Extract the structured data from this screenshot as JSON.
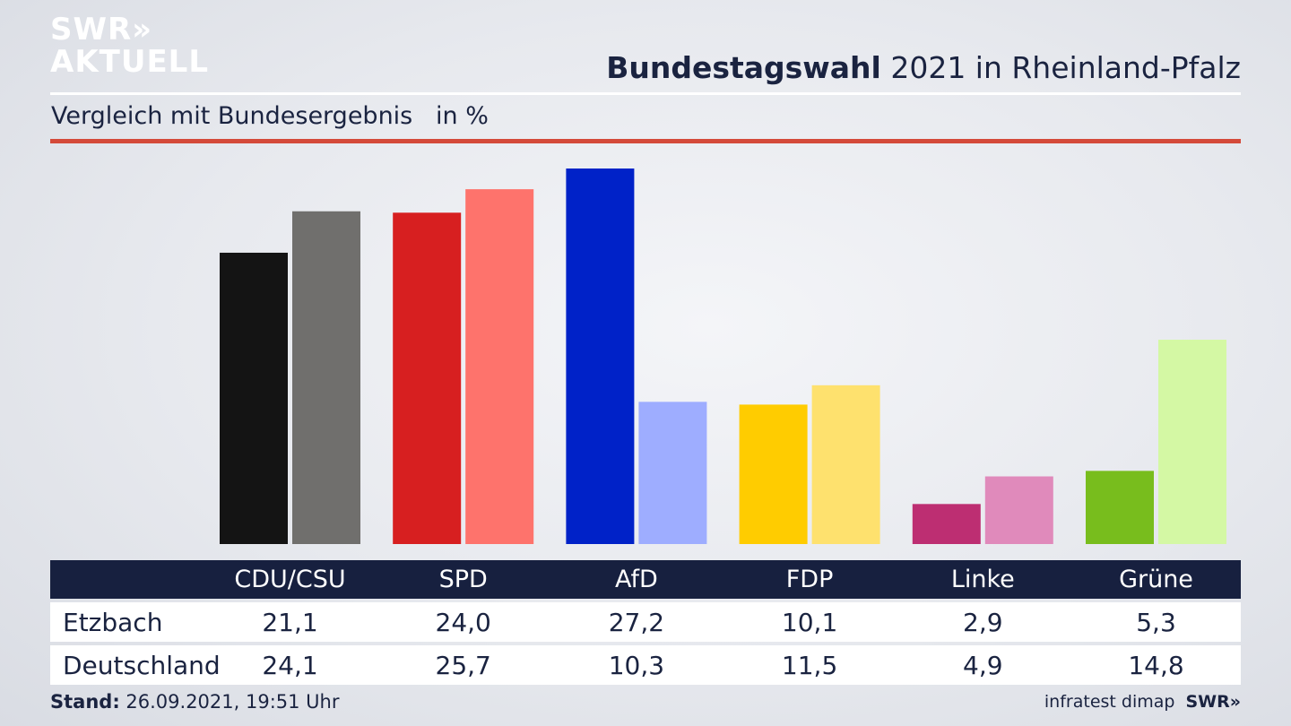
{
  "logo": {
    "line1": "SWR»",
    "line2": "AKTUELL"
  },
  "header": {
    "title_bold": "Bundestagswahl",
    "title_rest": " 2021 in Rheinland-Pfalz"
  },
  "subtitle": "Vergleich mit Bundesergebnis   in %",
  "footer": {
    "stand_label": "Stand:",
    "stand_value": " 26.09.2021, 19:51 Uhr",
    "source": "infratest dimap",
    "brand": "SWR»"
  },
  "chart_data": {
    "type": "bar",
    "categories": [
      "CDU/CSU",
      "SPD",
      "AfD",
      "FDP",
      "Linke",
      "Grüne"
    ],
    "series": [
      {
        "name": "Etzbach",
        "values": [
          21.1,
          24.0,
          27.2,
          10.1,
          2.9,
          5.3
        ],
        "colors": [
          "#141414",
          "#d71f20",
          "#0022c8",
          "#ffcc00",
          "#bd2e72",
          "#78bd1d"
        ]
      },
      {
        "name": "Deutschland",
        "values": [
          24.1,
          25.7,
          10.3,
          11.5,
          4.9,
          14.8
        ],
        "colors": [
          "#706f6d",
          "#fe736c",
          "#9eadff",
          "#fee16e",
          "#e08abb",
          "#d4f8a4"
        ]
      }
    ],
    "value_labels": [
      [
        "21,1",
        "24,0",
        "27,2",
        "10,1",
        "2,9",
        "5,3"
      ],
      [
        "24,1",
        "25,7",
        "10,3",
        "11,5",
        "4,9",
        "14,8"
      ]
    ],
    "ylim": [
      0,
      27.2
    ]
  }
}
